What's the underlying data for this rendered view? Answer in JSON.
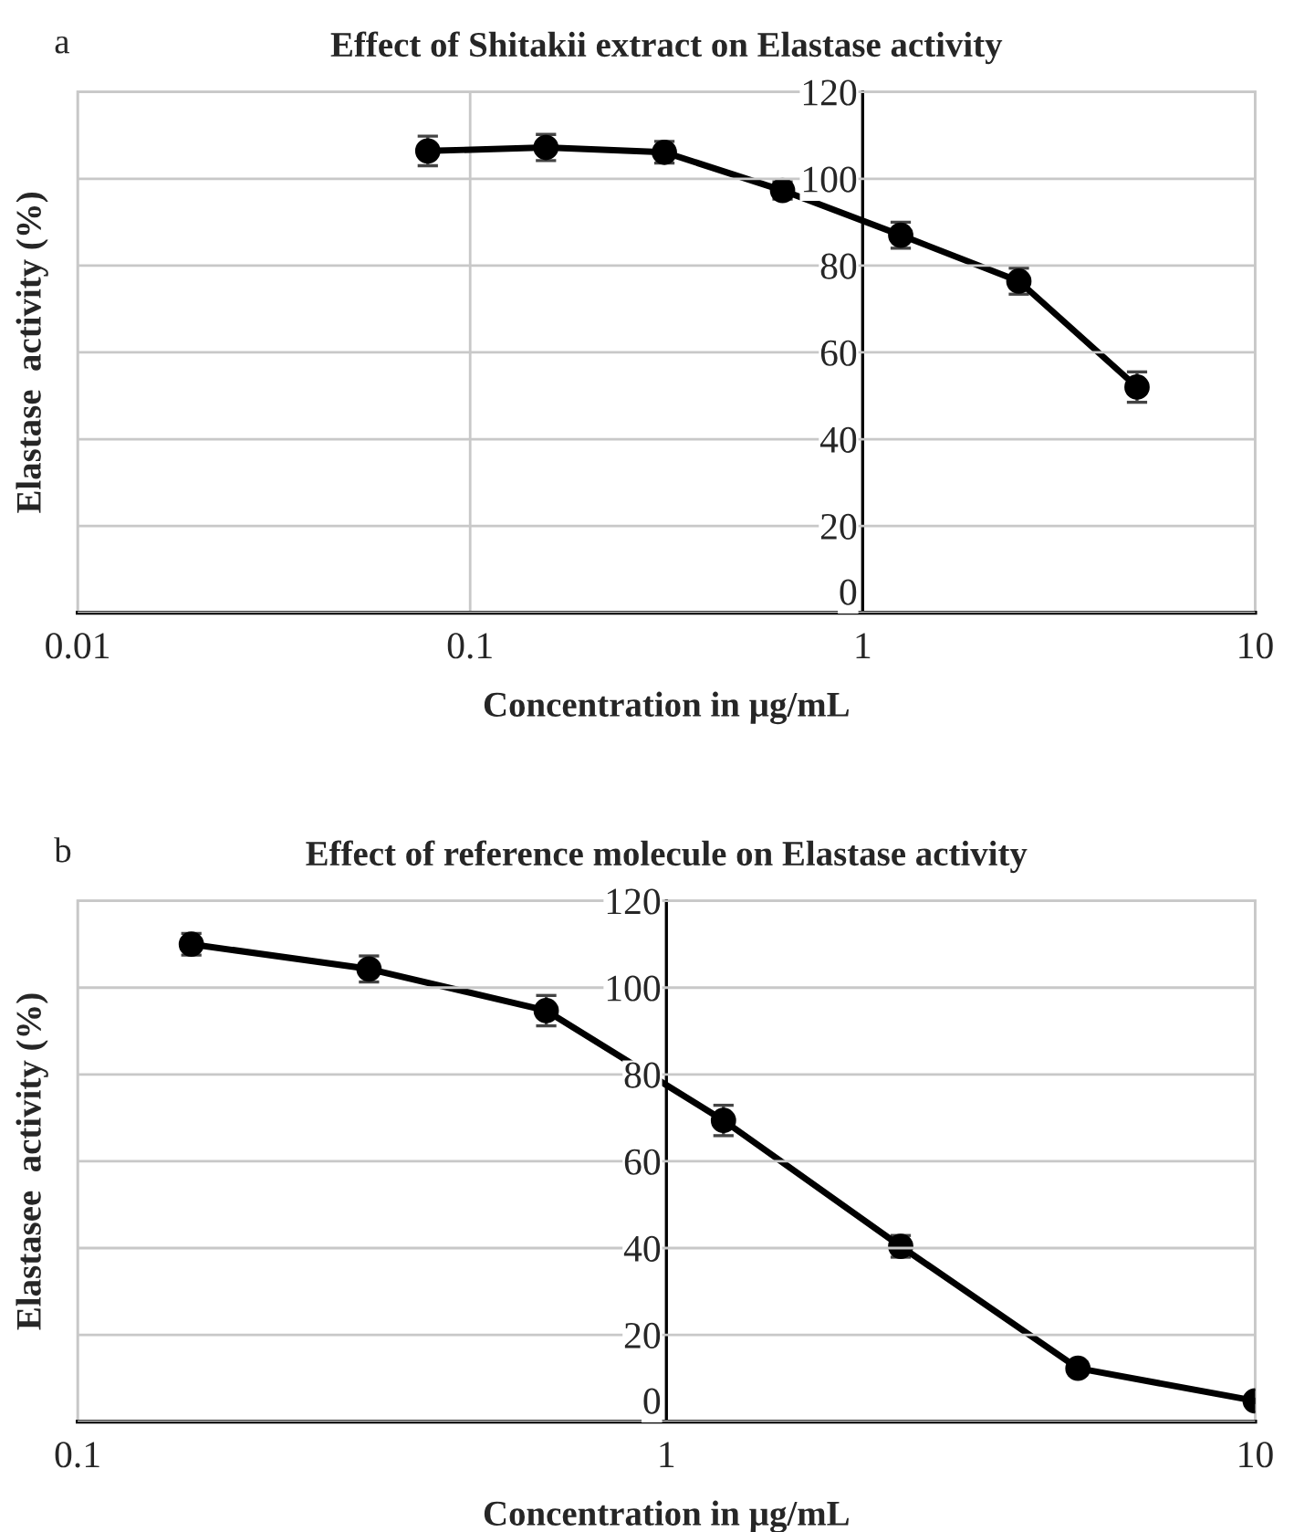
{
  "chart_data": [
    {
      "type": "line",
      "title": "Effect of Shitakii extract on Elastase activity",
      "xlabel": "Concentration in µg/mL",
      "ylabel": "Elastase  activity (%)",
      "annotations": [
        "a"
      ],
      "log": "x",
      "xlim": [
        0.01,
        10
      ],
      "xticks": [
        0.01,
        0.1,
        1,
        10
      ],
      "ylim": [
        0,
        120
      ],
      "yticks": [
        0,
        20,
        40,
        60,
        80,
        100,
        120
      ],
      "grid": true,
      "marker": "circle",
      "line_style": "solid",
      "series": [
        {
          "color": "#000000",
          "x": [
            0.078,
            0.156,
            0.3125,
            0.625,
            1.25,
            2.5,
            5
          ],
          "values": [
            106.4,
            107.2,
            106.1,
            97.3,
            87.0,
            76.4,
            52.0
          ],
          "errors": [
            3.4,
            3,
            2.5,
            2,
            3,
            3,
            3.5
          ]
        }
      ]
    },
    {
      "type": "line",
      "title": "Effect of reference molecule on Elastase activity",
      "xlabel": "Concentration in µg/mL",
      "ylabel": "Elastasee  activity (%)",
      "annotations": [
        "b"
      ],
      "log": "x",
      "xlim": [
        0.1,
        10
      ],
      "xticks": [
        0.1,
        1,
        10
      ],
      "ylim": [
        0,
        120
      ],
      "yticks": [
        0,
        20,
        40,
        60,
        80,
        100,
        120
      ],
      "grid": true,
      "marker": "circle",
      "line_style": "solid",
      "series": [
        {
          "color": "#000000",
          "x": [
            0.156,
            0.3125,
            0.625,
            1.25,
            2.5,
            5,
            10
          ],
          "values": [
            110.0,
            104.3,
            94.7,
            69.4,
            40.4,
            12.3,
            4.8
          ],
          "errors": [
            2.5,
            3,
            3.5,
            3.5,
            2.5,
            1.5,
            null
          ]
        }
      ]
    }
  ]
}
